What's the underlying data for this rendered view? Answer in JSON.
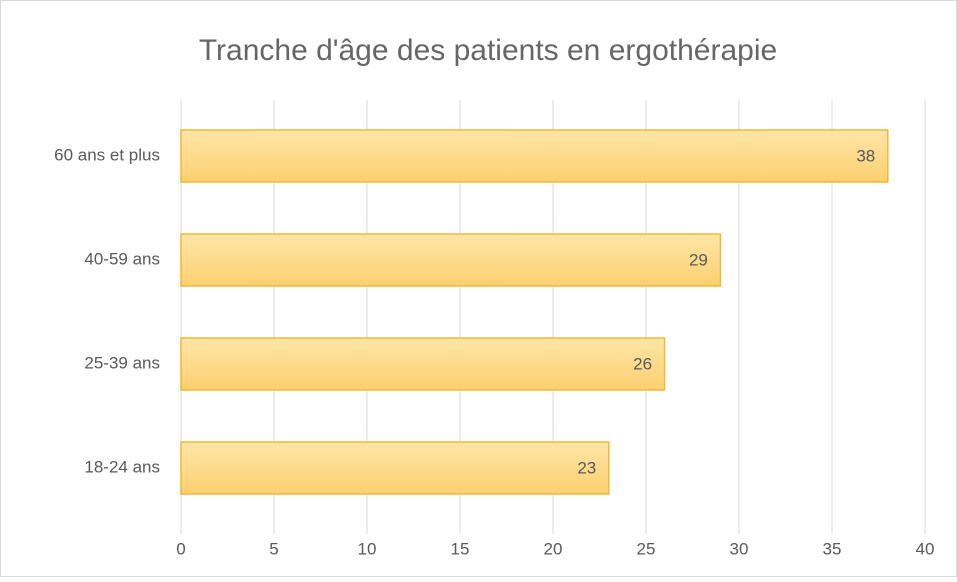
{
  "chart_data": {
    "type": "bar",
    "orientation": "horizontal",
    "title": "Tranche d'âge des patients en ergothérapie",
    "categories": [
      "60 ans et plus",
      "40-59 ans",
      "25-39 ans",
      "18-24 ans"
    ],
    "values": [
      38,
      29,
      26,
      23
    ],
    "color": "#fcd77f",
    "xlim": [
      0,
      40
    ],
    "xticks": [
      0,
      5,
      10,
      15,
      20,
      25,
      30,
      35,
      40
    ],
    "grid": true
  }
}
